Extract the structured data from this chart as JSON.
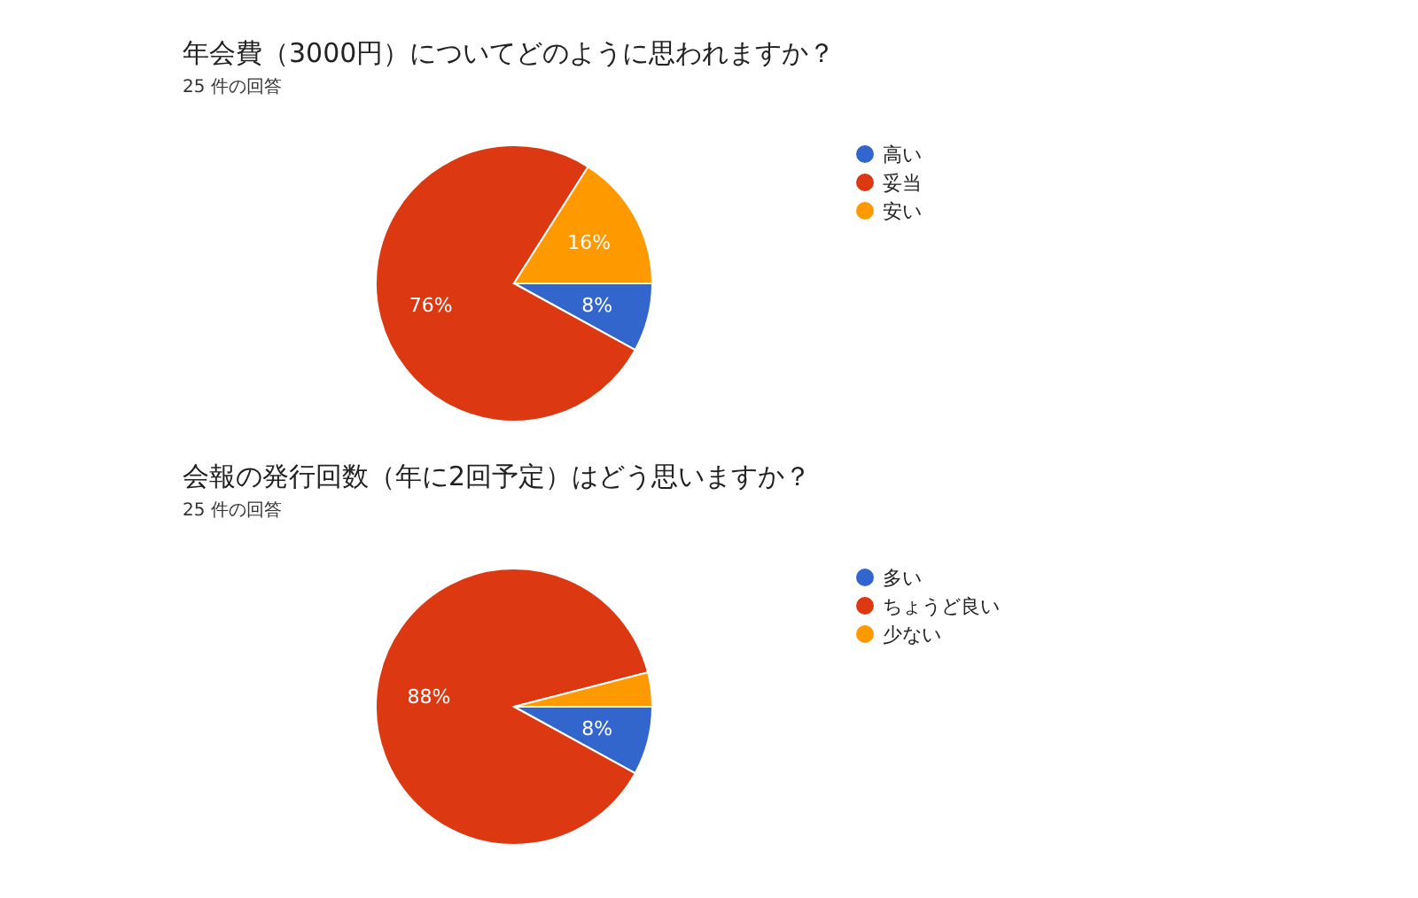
{
  "chart_data": [
    {
      "type": "pie",
      "title": "年会費（3000円）についてどのように思われますか？",
      "subtitle": "25 件の回答",
      "categories": [
        "高い",
        "妥当",
        "安い"
      ],
      "values": [
        8,
        76,
        16
      ],
      "colors": [
        "#3366cc",
        "#dc3912",
        "#ff9900"
      ],
      "value_labels": [
        "8%",
        "76%",
        "16%"
      ],
      "legend": "right"
    },
    {
      "type": "pie",
      "title": "会報の発行回数（年に2回予定）はどう思いますか？",
      "subtitle": "25 件の回答",
      "categories": [
        "多い",
        "ちょうど良い",
        "少ない"
      ],
      "values": [
        8,
        88,
        4
      ],
      "colors": [
        "#3366cc",
        "#dc3912",
        "#ff9900"
      ],
      "value_labels": [
        "8%",
        "88%",
        null
      ],
      "legend": "right"
    }
  ]
}
